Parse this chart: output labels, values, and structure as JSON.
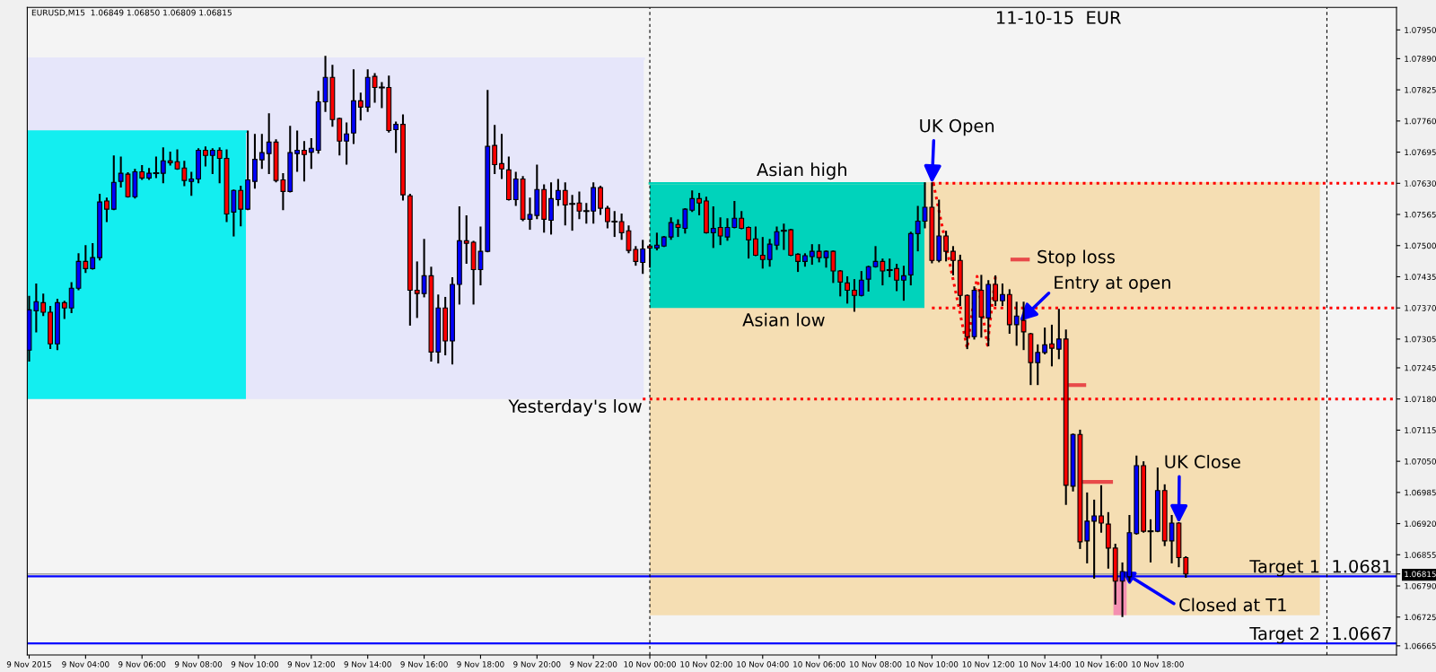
{
  "chart_data": {
    "type": "candlestick",
    "title": "EURUSD,M15  1.06849 1.06850 1.06809 1.06815",
    "x": [
      "2015-11-09T02:00",
      "2015-11-09T02:15",
      "2015-11-09T02:30",
      "2015-11-09T02:45",
      "2015-11-09T03:00",
      "2015-11-09T03:15",
      "2015-11-09T03:30",
      "2015-11-09T03:45",
      "2015-11-09T04:00",
      "2015-11-09T04:15",
      "2015-11-09T04:30",
      "2015-11-09T04:45",
      "2015-11-09T05:00",
      "2015-11-09T05:15",
      "2015-11-09T05:30",
      "2015-11-09T05:45",
      "2015-11-09T06:00",
      "2015-11-09T06:15",
      "2015-11-09T06:30",
      "2015-11-09T06:45",
      "2015-11-09T07:00",
      "2015-11-09T07:15",
      "2015-11-09T07:30",
      "2015-11-09T07:45",
      "2015-11-09T08:00",
      "2015-11-09T08:15",
      "2015-11-09T08:30",
      "2015-11-09T08:45",
      "2015-11-09T09:00",
      "2015-11-09T09:15",
      "2015-11-09T09:30",
      "2015-11-09T09:45",
      "2015-11-09T10:00",
      "2015-11-09T10:15",
      "2015-11-09T10:30",
      "2015-11-09T10:45",
      "2015-11-09T11:00",
      "2015-11-09T11:15",
      "2015-11-09T11:30",
      "2015-11-09T11:45",
      "2015-11-09T12:00",
      "2015-11-09T12:15",
      "2015-11-09T12:30",
      "2015-11-09T12:45",
      "2015-11-09T13:00",
      "2015-11-09T13:15",
      "2015-11-09T13:30",
      "2015-11-09T13:45",
      "2015-11-09T14:00",
      "2015-11-09T14:15",
      "2015-11-09T14:30",
      "2015-11-09T14:45",
      "2015-11-09T15:00",
      "2015-11-09T15:15",
      "2015-11-09T15:30",
      "2015-11-09T15:45",
      "2015-11-09T16:00",
      "2015-11-09T16:15",
      "2015-11-09T16:30",
      "2015-11-09T16:45",
      "2015-11-09T17:00",
      "2015-11-09T17:15",
      "2015-11-09T17:30",
      "2015-11-09T17:45",
      "2015-11-09T18:00",
      "2015-11-09T18:15",
      "2015-11-09T18:30",
      "2015-11-09T18:45",
      "2015-11-09T19:00",
      "2015-11-09T19:15",
      "2015-11-09T19:30",
      "2015-11-09T19:45",
      "2015-11-09T20:00",
      "2015-11-09T20:15",
      "2015-11-09T20:30",
      "2015-11-09T20:45",
      "2015-11-09T21:00",
      "2015-11-09T21:15",
      "2015-11-09T21:30",
      "2015-11-09T21:45",
      "2015-11-09T22:00",
      "2015-11-09T22:15",
      "2015-11-09T22:30",
      "2015-11-09T22:45",
      "2015-11-09T23:00",
      "2015-11-09T23:15",
      "2015-11-09T23:30",
      "2015-11-09T23:45",
      "2015-11-10T00:00",
      "2015-11-10T00:15",
      "2015-11-10T00:30",
      "2015-11-10T00:45",
      "2015-11-10T01:00",
      "2015-11-10T01:15",
      "2015-11-10T01:30",
      "2015-11-10T01:45",
      "2015-11-10T02:00",
      "2015-11-10T02:15",
      "2015-11-10T02:30",
      "2015-11-10T02:45",
      "2015-11-10T03:00",
      "2015-11-10T03:15",
      "2015-11-10T03:30",
      "2015-11-10T03:45",
      "2015-11-10T04:00",
      "2015-11-10T04:15",
      "2015-11-10T04:30",
      "2015-11-10T04:45",
      "2015-11-10T05:00",
      "2015-11-10T05:15",
      "2015-11-10T05:30",
      "2015-11-10T05:45",
      "2015-11-10T06:00",
      "2015-11-10T06:15",
      "2015-11-10T06:30",
      "2015-11-10T06:45",
      "2015-11-10T07:00",
      "2015-11-10T07:15",
      "2015-11-10T07:30",
      "2015-11-10T07:45",
      "2015-11-10T08:00",
      "2015-11-10T08:15",
      "2015-11-10T08:30",
      "2015-11-10T08:45",
      "2015-11-10T09:00",
      "2015-11-10T09:15",
      "2015-11-10T09:30",
      "2015-11-10T09:45",
      "2015-11-10T10:00",
      "2015-11-10T10:15",
      "2015-11-10T10:30",
      "2015-11-10T10:45",
      "2015-11-10T11:00",
      "2015-11-10T11:15",
      "2015-11-10T11:30",
      "2015-11-10T11:45",
      "2015-11-10T12:00",
      "2015-11-10T12:15",
      "2015-11-10T12:30",
      "2015-11-10T12:45",
      "2015-11-10T13:00",
      "2015-11-10T13:15",
      "2015-11-10T13:30",
      "2015-11-10T13:45",
      "2015-11-10T14:00",
      "2015-11-10T14:15",
      "2015-11-10T14:30",
      "2015-11-10T14:45",
      "2015-11-10T15:00",
      "2015-11-10T15:15",
      "2015-11-10T15:30",
      "2015-11-10T15:45",
      "2015-11-10T16:00",
      "2015-11-10T16:15",
      "2015-11-10T16:30",
      "2015-11-10T16:45",
      "2015-11-10T17:00",
      "2015-11-10T17:15",
      "2015-11-10T17:30",
      "2015-11-10T17:45",
      "2015-11-10T18:00",
      "2015-11-10T18:15",
      "2015-11-10T18:30",
      "2015-11-10T18:45",
      "2015-11-10T19:00"
    ],
    "ohlc": [
      [
        1.07282,
        1.07393,
        1.0726,
        1.07366
      ],
      [
        1.07364,
        1.07419,
        1.07321,
        1.07383
      ],
      [
        1.07381,
        1.07398,
        1.07355,
        1.07361
      ],
      [
        1.07361,
        1.07372,
        1.07286,
        1.07295
      ],
      [
        1.07295,
        1.07387,
        1.07284,
        1.07381
      ],
      [
        1.07381,
        1.07383,
        1.07349,
        1.0737
      ],
      [
        1.0737,
        1.07422,
        1.07361,
        1.07411
      ],
      [
        1.07411,
        1.07482,
        1.07409,
        1.07467
      ],
      [
        1.07467,
        1.07499,
        1.07445,
        1.07452
      ],
      [
        1.07452,
        1.07503,
        1.07452,
        1.07475
      ],
      [
        1.07475,
        1.07606,
        1.07471,
        1.07591
      ],
      [
        1.07593,
        1.07598,
        1.07551,
        1.07576
      ],
      [
        1.07576,
        1.07686,
        1.07576,
        1.07632
      ],
      [
        1.07634,
        1.07684,
        1.07623,
        1.07651
      ],
      [
        1.07649,
        1.07651,
        1.07602,
        1.07602
      ],
      [
        1.07602,
        1.07658,
        1.076,
        1.07654
      ],
      [
        1.07654,
        1.07666,
        1.07639,
        1.07641
      ],
      [
        1.07641,
        1.0766,
        1.07639,
        1.07651
      ],
      [
        1.07651,
        1.07684,
        1.07643,
        1.07651
      ],
      [
        1.07651,
        1.07703,
        1.07632,
        1.07677
      ],
      [
        1.07677,
        1.07694,
        1.07669,
        1.07673
      ],
      [
        1.07675,
        1.07699,
        1.0766,
        1.0766
      ],
      [
        1.07662,
        1.07675,
        1.07626,
        1.07636
      ],
      [
        1.07634,
        1.07652,
        1.07606,
        1.07639
      ],
      [
        1.07639,
        1.07701,
        1.07632,
        1.07699
      ],
      [
        1.07699,
        1.07705,
        1.07667,
        1.07688
      ],
      [
        1.07688,
        1.07701,
        1.07651,
        1.07699
      ],
      [
        1.07699,
        1.07703,
        1.07632,
        1.07682
      ],
      [
        1.07682,
        1.07699,
        1.07551,
        1.07566
      ],
      [
        1.0757,
        1.07615,
        1.07521,
        1.07615
      ],
      [
        1.07615,
        1.07623,
        1.07542,
        1.07576
      ],
      [
        1.07576,
        1.07738,
        1.07576,
        1.07637
      ],
      [
        1.07634,
        1.07731,
        1.07621,
        1.0768
      ],
      [
        1.07679,
        1.07731,
        1.07662,
        1.07694
      ],
      [
        1.07692,
        1.07774,
        1.07651,
        1.07716
      ],
      [
        1.07716,
        1.0772,
        1.07634,
        1.07636
      ],
      [
        1.07637,
        1.07649,
        1.07576,
        1.07613
      ],
      [
        1.07613,
        1.07748,
        1.07613,
        1.07694
      ],
      [
        1.07692,
        1.07738,
        1.07656,
        1.07699
      ],
      [
        1.07699,
        1.07716,
        1.07636,
        1.0769
      ],
      [
        1.07695,
        1.07722,
        1.07662,
        1.07703
      ],
      [
        1.07699,
        1.07821,
        1.07694,
        1.078
      ],
      [
        1.078,
        1.07894,
        1.07781,
        1.07851
      ],
      [
        1.07851,
        1.07875,
        1.0775,
        1.07763
      ],
      [
        1.07765,
        1.07765,
        1.0769,
        1.07718
      ],
      [
        1.07718,
        1.07755,
        1.07671,
        1.07733
      ],
      [
        1.07735,
        1.07866,
        1.07714,
        1.07802
      ],
      [
        1.07802,
        1.07817,
        1.07763,
        1.07789
      ],
      [
        1.07789,
        1.07866,
        1.07781,
        1.07851
      ],
      [
        1.07853,
        1.07858,
        1.078,
        1.0783
      ],
      [
        1.0783,
        1.07839,
        1.07789,
        1.0783
      ],
      [
        1.0783,
        1.07853,
        1.07738,
        1.0774
      ],
      [
        1.07742,
        1.07757,
        1.07695,
        1.07753
      ],
      [
        1.07753,
        1.07772,
        1.07596,
        1.07606
      ],
      [
        1.07604,
        1.07606,
        1.07335,
        1.07407
      ],
      [
        1.07407,
        1.07465,
        1.07351,
        1.074
      ],
      [
        1.074,
        1.07512,
        1.07394,
        1.07437
      ],
      [
        1.07437,
        1.07454,
        1.0726,
        1.07278
      ],
      [
        1.07278,
        1.07396,
        1.07256,
        1.0737
      ],
      [
        1.0737,
        1.07391,
        1.07273,
        1.07301
      ],
      [
        1.07301,
        1.07432,
        1.07254,
        1.07419
      ],
      [
        1.07419,
        1.0758,
        1.07379,
        1.0751
      ],
      [
        1.0751,
        1.07561,
        1.07464,
        1.07505
      ],
      [
        1.07507,
        1.07508,
        1.07379,
        1.0745
      ],
      [
        1.0745,
        1.07538,
        1.07419,
        1.07488
      ],
      [
        1.07488,
        1.07823,
        1.07488,
        1.07707
      ],
      [
        1.07709,
        1.0775,
        1.07651,
        1.07669
      ],
      [
        1.07671,
        1.07731,
        1.07641,
        1.0766
      ],
      [
        1.07658,
        1.07684,
        1.07596,
        1.07596
      ],
      [
        1.07596,
        1.07652,
        1.07585,
        1.07639
      ],
      [
        1.07639,
        1.07643,
        1.07553,
        1.07555
      ],
      [
        1.07555,
        1.07598,
        1.07535,
        1.07565
      ],
      [
        1.07563,
        1.07667,
        1.07557,
        1.07617
      ],
      [
        1.07617,
        1.07626,
        1.07529,
        1.07555
      ],
      [
        1.07553,
        1.0763,
        1.07525,
        1.07598
      ],
      [
        1.07596,
        1.07637,
        1.07585,
        1.07615
      ],
      [
        1.07615,
        1.0763,
        1.07544,
        1.07585
      ],
      [
        1.07587,
        1.07604,
        1.07533,
        1.07587
      ],
      [
        1.07589,
        1.07611,
        1.07557,
        1.07572
      ],
      [
        1.07572,
        1.07587,
        1.07548,
        1.07572
      ],
      [
        1.07572,
        1.0763,
        1.07548,
        1.07621
      ],
      [
        1.07621,
        1.07623,
        1.07566,
        1.07578
      ],
      [
        1.07578,
        1.07581,
        1.07538,
        1.0755
      ],
      [
        1.0755,
        1.0757,
        1.0752,
        1.0755
      ],
      [
        1.0755,
        1.07565,
        1.07514,
        1.07527
      ],
      [
        1.07531,
        1.0754,
        1.07486,
        1.0749
      ],
      [
        1.07492,
        1.07497,
        1.0746,
        1.07467
      ],
      [
        1.07465,
        1.0751,
        1.07443,
        1.07493
      ],
      [
        1.07499,
        1.07501,
        1.07456,
        1.07495
      ],
      [
        1.07495,
        1.07525,
        1.07492,
        1.07501
      ],
      [
        1.07499,
        1.07518,
        1.07499,
        1.07518
      ],
      [
        1.07518,
        1.07557,
        1.07514,
        1.07548
      ],
      [
        1.07544,
        1.07553,
        1.0752,
        1.07538
      ],
      [
        1.07536,
        1.07576,
        1.07527,
        1.07576
      ],
      [
        1.07574,
        1.07613,
        1.07572,
        1.07598
      ],
      [
        1.07598,
        1.07608,
        1.07565,
        1.07589
      ],
      [
        1.07593,
        1.076,
        1.07527,
        1.07527
      ],
      [
        1.07527,
        1.0758,
        1.07497,
        1.07536
      ],
      [
        1.07538,
        1.07557,
        1.07503,
        1.0752
      ],
      [
        1.07518,
        1.07555,
        1.07512,
        1.07538
      ],
      [
        1.07538,
        1.07591,
        1.07538,
        1.07557
      ],
      [
        1.07557,
        1.0757,
        1.07536,
        1.07536
      ],
      [
        1.07538,
        1.07538,
        1.07475,
        1.07512
      ],
      [
        1.07514,
        1.07538,
        1.0748,
        1.0748
      ],
      [
        1.0748,
        1.07516,
        1.07454,
        1.07471
      ],
      [
        1.07471,
        1.07512,
        1.07458,
        1.07503
      ],
      [
        1.07501,
        1.07538,
        1.07493,
        1.07529
      ],
      [
        1.07531,
        1.07544,
        1.07493,
        1.07531
      ],
      [
        1.07533,
        1.07533,
        1.0748,
        1.0748
      ],
      [
        1.07482,
        1.07482,
        1.07447,
        1.07467
      ],
      [
        1.07467,
        1.07482,
        1.07458,
        1.07479
      ],
      [
        1.07477,
        1.07501,
        1.07462,
        1.07488
      ],
      [
        1.07488,
        1.07501,
        1.07467,
        1.07475
      ],
      [
        1.07475,
        1.07488,
        1.07456,
        1.07488
      ],
      [
        1.07488,
        1.07488,
        1.07424,
        1.07447
      ],
      [
        1.07447,
        1.07447,
        1.07396,
        1.07424
      ],
      [
        1.07422,
        1.07434,
        1.07381,
        1.07407
      ],
      [
        1.07407,
        1.07428,
        1.07364,
        1.07396
      ],
      [
        1.07396,
        1.07445,
        1.07396,
        1.07428
      ],
      [
        1.0743,
        1.07456,
        1.07406,
        1.07456
      ],
      [
        1.07456,
        1.07497,
        1.07456,
        1.07467
      ],
      [
        1.07467,
        1.07471,
        1.07419,
        1.07447
      ],
      [
        1.07449,
        1.07471,
        1.07436,
        1.07449
      ],
      [
        1.07452,
        1.0746,
        1.07407,
        1.07428
      ],
      [
        1.07428,
        1.07456,
        1.07387,
        1.07437
      ],
      [
        1.07439,
        1.07527,
        1.07419,
        1.07525
      ],
      [
        1.07525,
        1.07581,
        1.0749,
        1.07551
      ],
      [
        1.07551,
        1.0763,
        1.07538,
        1.0758
      ],
      [
        1.0758,
        1.0763,
        1.07465,
        1.07469
      ],
      [
        1.07469,
        1.07594,
        1.07467,
        1.0752
      ],
      [
        1.0752,
        1.07529,
        1.07469,
        1.07488
      ],
      [
        1.07488,
        1.07497,
        1.0744,
        1.07469
      ],
      [
        1.07469,
        1.07479,
        1.07376,
        1.07396
      ],
      [
        1.07396,
        1.07396,
        1.07286,
        1.0731
      ],
      [
        1.0731,
        1.07413,
        1.07306,
        1.07407
      ],
      [
        1.07407,
        1.07437,
        1.0731,
        1.07351
      ],
      [
        1.07349,
        1.07426,
        1.07292,
        1.07419
      ],
      [
        1.07419,
        1.07436,
        1.07376,
        1.07385
      ],
      [
        1.07385,
        1.07419,
        1.07376,
        1.07398
      ],
      [
        1.07398,
        1.07407,
        1.07318,
        1.07335
      ],
      [
        1.07335,
        1.07381,
        1.07293,
        1.07353
      ],
      [
        1.07344,
        1.07381,
        1.07284,
        1.0732
      ],
      [
        1.07316,
        1.07316,
        1.07211,
        1.07256
      ],
      [
        1.07256,
        1.07292,
        1.07211,
        1.07277
      ],
      [
        1.07277,
        1.07327,
        1.07275,
        1.07293
      ],
      [
        1.07295,
        1.07333,
        1.0725,
        1.07286
      ],
      [
        1.07284,
        1.07366,
        1.07265,
        1.07305
      ],
      [
        1.07305,
        1.07323,
        1.06961,
        1.07
      ],
      [
        1.06998,
        1.07106,
        1.06989,
        1.07106
      ],
      [
        1.07106,
        1.07114,
        1.06869,
        1.06882
      ],
      [
        1.06884,
        1.06983,
        1.06839,
        1.06925
      ],
      [
        1.06925,
        1.06968,
        1.06807,
        1.06936
      ],
      [
        1.06936,
        1.06998,
        1.06903,
        1.06921
      ],
      [
        1.06919,
        1.06942,
        1.06828,
        1.06869
      ],
      [
        1.06869,
        1.06876,
        1.06753,
        1.068
      ],
      [
        1.068,
        1.06837,
        1.06727,
        1.0682
      ],
      [
        1.06809,
        1.06936,
        1.068,
        1.06901
      ],
      [
        1.06899,
        1.0706,
        1.06899,
        1.07041
      ],
      [
        1.07041,
        1.07048,
        1.06903,
        1.06904
      ],
      [
        1.06904,
        1.06927,
        1.06841,
        1.06904
      ],
      [
        1.06904,
        1.07035,
        1.06904,
        1.06989
      ],
      [
        1.06989,
        1.07,
        1.06875,
        1.06884
      ],
      [
        1.06884,
        1.06936,
        1.06839,
        1.06921
      ],
      [
        1.06921,
        1.06921,
        1.06831,
        1.06849
      ],
      [
        1.06849,
        1.0685,
        1.06809,
        1.06815
      ]
    ],
    "colors": [
      "#0000ff",
      "#0000ff",
      "#ff0000",
      "#ff0000",
      "#0000ff",
      "#ff0000",
      "#0000ff",
      "#0000ff",
      "#ff0000",
      "#0000ff",
      "#0000ff",
      "#ff0000",
      "#0000ff",
      "#0000ff",
      "#ff0000",
      "#0000ff",
      "#ff0000",
      "#0000ff",
      "#000000",
      "#0000ff",
      "#ff0000",
      "#ff0000",
      "#ff0000",
      "#0000ff",
      "#0000ff",
      "#ff0000",
      "#0000ff",
      "#ff0000",
      "#ff0000",
      "#0000ff",
      "#ff0000",
      "#0000ff",
      "#0000ff",
      "#0000ff",
      "#0000ff",
      "#ff0000",
      "#ff0000",
      "#0000ff",
      "#0000ff",
      "#ff0000",
      "#0000ff",
      "#0000ff",
      "#0000ff",
      "#ff0000",
      "#ff0000",
      "#0000ff",
      "#0000ff",
      "#ff0000",
      "#0000ff",
      "#ff0000",
      "#000000",
      "#ff0000",
      "#0000ff",
      "#ff0000",
      "#ff0000",
      "#ff0000",
      "#0000ff",
      "#ff0000",
      "#0000ff",
      "#ff0000",
      "#0000ff",
      "#0000ff",
      "#ff0000",
      "#ff0000",
      "#0000ff",
      "#0000ff",
      "#ff0000",
      "#ff0000",
      "#ff0000",
      "#0000ff",
      "#ff0000",
      "#0000ff",
      "#0000ff",
      "#ff0000",
      "#0000ff",
      "#0000ff",
      "#ff0000",
      "#000000",
      "#ff0000",
      "#000000",
      "#0000ff",
      "#ff0000",
      "#ff0000",
      "#000000",
      "#ff0000",
      "#ff0000",
      "#ff0000",
      "#0000ff",
      "#ff0000",
      "#0000ff",
      "#0000ff",
      "#0000ff",
      "#ff0000",
      "#0000ff",
      "#0000ff",
      "#ff0000",
      "#ff0000",
      "#0000ff",
      "#ff0000",
      "#0000ff",
      "#0000ff",
      "#ff0000",
      "#ff0000",
      "#ff0000",
      "#ff0000",
      "#0000ff",
      "#0000ff",
      "#000000",
      "#ff0000",
      "#ff0000",
      "#0000ff",
      "#0000ff",
      "#ff0000",
      "#0000ff",
      "#ff0000",
      "#ff0000",
      "#ff0000",
      "#ff0000",
      "#0000ff",
      "#0000ff",
      "#0000ff",
      "#ff0000",
      "#000000",
      "#ff0000",
      "#0000ff",
      "#0000ff",
      "#0000ff",
      "#0000ff",
      "#ff0000",
      "#0000ff",
      "#ff0000",
      "#ff0000",
      "#ff0000",
      "#ff0000",
      "#0000ff",
      "#ff0000",
      "#0000ff",
      "#ff0000",
      "#0000ff",
      "#ff0000",
      "#0000ff",
      "#ff0000",
      "#ff0000",
      "#0000ff",
      "#0000ff",
      "#ff0000",
      "#0000ff",
      "#ff0000",
      "#0000ff",
      "#ff0000",
      "#0000ff",
      "#0000ff",
      "#ff0000",
      "#ff0000",
      "#ff0000",
      "#0000ff",
      "#0000ff",
      "#0000ff",
      "#ff0000",
      "#000000",
      "#0000ff",
      "#ff0000",
      "#0000ff",
      "#ff0000",
      "#ff0000"
    ],
    "series": [
      {
        "type": "line",
        "color": "#e6e6fa",
        "x": [
          "2015-11-09T01:56",
          "2015-11-09T23:47"
        ],
        "values": [
          1.0789,
          1.0789
        ],
        "lower": [
          1.0718,
          1.0718
        ],
        "upper": [
          1.0789,
          1.0789
        ]
      },
      {
        "type": "line",
        "color": "#13eef0",
        "x": [
          "2015-11-09T01:56",
          "2015-11-09T09:41"
        ],
        "values": [
          1.07738,
          1.07738
        ],
        "lower": [
          1.0718,
          1.0718
        ],
        "upper": [
          1.07738,
          1.07738
        ]
      },
      {
        "type": "line",
        "color": "#f5deb3",
        "x": [
          "2015-11-10T00:00",
          "2015-11-10T23:45"
        ],
        "values": [
          1.0763,
          1.0763
        ],
        "lower": [
          1.06729,
          1.06729
        ],
        "upper": [
          1.0763,
          1.0763
        ]
      },
      {
        "type": "line",
        "color": "#00d3bb",
        "x": [
          "2015-11-10T00:00",
          "2015-11-10T09:44"
        ],
        "values": [
          1.0763,
          1.0763
        ],
        "lower": [
          1.0737,
          1.0737
        ],
        "upper": [
          1.0763,
          1.0763
        ]
      },
      {
        "type": "line",
        "color": "#f48fb1",
        "x": [
          "2015-11-10T16:26",
          "2015-11-10T16:54"
        ],
        "values": [
          1.06805,
          1.06805
        ],
        "lower": [
          1.06729,
          1.06729
        ],
        "upper": [
          1.06805,
          1.06805
        ]
      },
      {
        "type": "line",
        "color": "#ff0000",
        "line_style": "dotted",
        "x": [
          "2015-11-10T10:00",
          "2015-11-11T02:28"
        ],
        "values": [
          1.0763,
          1.0763
        ]
      },
      {
        "type": "line",
        "color": "#ff0000",
        "line_style": "dotted",
        "x": [
          "2015-11-10T10:00",
          "2015-11-11T02:28"
        ],
        "values": [
          1.0737,
          1.0737
        ]
      },
      {
        "type": "line",
        "color": "#ff0000",
        "line_style": "dotted",
        "x": [
          "2015-11-09T23:45",
          "2015-11-11T02:28"
        ],
        "values": [
          1.0718,
          1.0718
        ]
      },
      {
        "type": "line",
        "color": "#ff0000",
        "line_style": "dotted",
        "x": [
          "2015-11-10T10:03",
          "2015-11-10T11:15",
          "2015-11-10T11:36",
          "2015-11-10T11:58",
          "2015-11-10T12:15"
        ],
        "values": [
          1.0763,
          1.07286,
          1.07436,
          1.07292,
          1.07436
        ]
      },
      {
        "type": "line",
        "color": "#e84a4a",
        "line_style": "solid",
        "x": [
          "2015-11-10T12:51",
          "2015-11-10T13:24"
        ],
        "values": [
          1.07471,
          1.07471
        ]
      },
      {
        "type": "line",
        "color": "#e84a4a",
        "line_style": "solid",
        "x": [
          "2015-11-10T14:54",
          "2015-11-10T15:24"
        ],
        "values": [
          1.07209,
          1.07209
        ]
      },
      {
        "type": "line",
        "color": "#e84a4a",
        "line_style": "solid",
        "x": [
          "2015-11-10T15:24",
          "2015-11-10T16:21"
        ],
        "values": [
          1.07007,
          1.07007
        ]
      }
    ],
    "ref_lines": [
      {
        "axis": "y",
        "value": 1.0681,
        "label": "Target 1  1.0681",
        "color": "#0000ff",
        "line_style": "solid"
      },
      {
        "axis": "y",
        "value": 1.0667,
        "label": "Target 2  1.0667",
        "color": "#0000ff",
        "line_style": "solid"
      },
      {
        "axis": "y",
        "value": 1.06815,
        "color": "#a0a0a0",
        "line_style": "solid"
      },
      {
        "axis": "x",
        "value": "2015-11-10T00:00",
        "color": "#000000",
        "line_style": "dashed"
      },
      {
        "axis": "x",
        "value": "2015-11-11T00:00",
        "color": "#000000",
        "line_style": "dashed"
      }
    ],
    "annotations": [
      "11-10-15  EUR",
      {
        "text": "Asian high",
        "x": "2015-11-10T05:24",
        "y": 1.0763
      },
      {
        "text": "Asian low",
        "x": "2015-11-10T04:45",
        "y": 1.0737
      },
      {
        "text": "Yesterday's low",
        "x": "2015-11-10T00:00",
        "y": 1.0718
      },
      {
        "text": "UK Open",
        "x": "2015-11-10T10:00",
        "y": 1.0763
      },
      {
        "text": "Stop loss",
        "x": "2015-11-10T13:24",
        "y": 1.07471
      },
      {
        "text": "Entry at open",
        "x": "2015-11-10T13:06",
        "y": 1.07342
      },
      {
        "text": "UK Close",
        "x": "2015-11-10T18:45",
        "y": 1.06921
      },
      {
        "text": "Closed at T1",
        "x": "2015-11-10T16:45",
        "y": 1.0682
      }
    ],
    "xlim": [
      "2015-11-09T01:56",
      "2015-11-11T02:28"
    ],
    "xticks": [
      {
        "value": "2015-11-09T02:00",
        "label": "9 Nov 2015"
      },
      {
        "value": "2015-11-09T04:00",
        "label": "9 Nov 04:00"
      },
      {
        "value": "2015-11-09T06:00",
        "label": "9 Nov 06:00"
      },
      {
        "value": "2015-11-09T08:00",
        "label": "9 Nov 08:00"
      },
      {
        "value": "2015-11-09T10:00",
        "label": "9 Nov 10:00"
      },
      {
        "value": "2015-11-09T12:00",
        "label": "9 Nov 12:00"
      },
      {
        "value": "2015-11-09T14:00",
        "label": "9 Nov 14:00"
      },
      {
        "value": "2015-11-09T16:00",
        "label": "9 Nov 16:00"
      },
      {
        "value": "2015-11-09T18:00",
        "label": "9 Nov 18:00"
      },
      {
        "value": "2015-11-09T20:00",
        "label": "9 Nov 20:00"
      },
      {
        "value": "2015-11-09T22:00",
        "label": "9 Nov 22:00"
      },
      {
        "value": "2015-11-10T00:00",
        "label": "10 Nov 00:00"
      },
      {
        "value": "2015-11-10T02:00",
        "label": "10 Nov 02:00"
      },
      {
        "value": "2015-11-10T04:00",
        "label": "10 Nov 04:00"
      },
      {
        "value": "2015-11-10T06:00",
        "label": "10 Nov 06:00"
      },
      {
        "value": "2015-11-10T08:00",
        "label": "10 Nov 08:00"
      },
      {
        "value": "2015-11-10T10:00",
        "label": "10 Nov 10:00"
      },
      {
        "value": "2015-11-10T12:00",
        "label": "10 Nov 12:00"
      },
      {
        "value": "2015-11-10T14:00",
        "label": "10 Nov 14:00"
      },
      {
        "value": "2015-11-10T16:00",
        "label": "10 Nov 16:00"
      },
      {
        "value": "2015-11-10T18:00",
        "label": "10 Nov 18:00"
      }
    ],
    "ylim": [
      1.06646,
      1.07997
    ],
    "yticks": [
      {
        "value": 1.0795,
        "label": "1.07950"
      },
      {
        "value": 1.0789,
        "label": "1.07890"
      },
      {
        "value": 1.07825,
        "label": "1.07825"
      },
      {
        "value": 1.0776,
        "label": "1.07760"
      },
      {
        "value": 1.07695,
        "label": "1.07695"
      },
      {
        "value": 1.0763,
        "label": "1.07630"
      },
      {
        "value": 1.07565,
        "label": "1.07565"
      },
      {
        "value": 1.075,
        "label": "1.07500"
      },
      {
        "value": 1.07435,
        "label": "1.07435"
      },
      {
        "value": 1.0737,
        "label": "1.07370"
      },
      {
        "value": 1.07305,
        "label": "1.07305"
      },
      {
        "value": 1.07245,
        "label": "1.07245"
      },
      {
        "value": 1.0718,
        "label": "1.07180"
      },
      {
        "value": 1.07115,
        "label": "1.07115"
      },
      {
        "value": 1.0705,
        "label": "1.07050"
      },
      {
        "value": 1.06985,
        "label": "1.06985"
      },
      {
        "value": 1.0692,
        "label": "1.06920"
      },
      {
        "value": 1.06855,
        "label": "1.06855"
      },
      {
        "value": 1.06815,
        "label": "1.06815"
      },
      {
        "value": 1.0679,
        "label": "1.06790"
      },
      {
        "value": 1.06725,
        "label": "1.06725"
      },
      {
        "value": 1.06665,
        "label": "1.06665"
      }
    ],
    "grid": false,
    "legend": false
  }
}
